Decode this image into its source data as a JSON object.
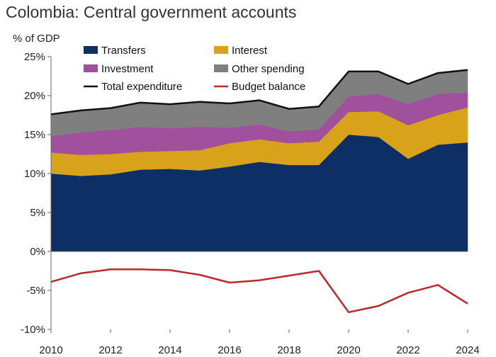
{
  "chart_data": {
    "type": "area",
    "title": "Colombia: Central government accounts",
    "xlabel": "",
    "ylabel": "% of GDP",
    "x": [
      2010,
      2011,
      2012,
      2013,
      2014,
      2015,
      2016,
      2017,
      2018,
      2019,
      2020,
      2021,
      2022,
      2023,
      2024
    ],
    "xticks": [
      "2010",
      "2012",
      "2014",
      "2016",
      "2018",
      "2020",
      "2022",
      "2024"
    ],
    "yticks": [
      "25%",
      "20%",
      "15%",
      "10%",
      "5%",
      "0%",
      "-5%",
      "-10%"
    ],
    "ylim": [
      -10,
      25
    ],
    "stacked_series": [
      {
        "name": "Transfers",
        "color": "#0d2f66",
        "values": [
          10.0,
          9.7,
          9.9,
          10.5,
          10.6,
          10.4,
          10.9,
          11.5,
          11.1,
          11.1,
          15.0,
          14.7,
          11.9,
          13.7,
          14.0
        ]
      },
      {
        "name": "Interest",
        "color": "#d9a21b",
        "values": [
          2.7,
          2.7,
          2.6,
          2.3,
          2.3,
          2.6,
          3.0,
          2.9,
          2.8,
          3.0,
          2.9,
          3.3,
          4.3,
          3.8,
          4.5
        ]
      },
      {
        "name": "Investment",
        "color": "#a0509c",
        "values": [
          2.1,
          2.9,
          3.1,
          3.2,
          2.9,
          3.0,
          2.0,
          1.9,
          1.5,
          1.6,
          2.0,
          2.2,
          2.7,
          2.7,
          1.9
        ]
      },
      {
        "name": "Other spending",
        "color": "#7f7f7f",
        "values": [
          2.8,
          2.8,
          2.8,
          3.1,
          3.1,
          3.2,
          3.1,
          3.1,
          2.9,
          2.9,
          3.2,
          2.9,
          2.6,
          2.7,
          2.9
        ]
      }
    ],
    "line_series": [
      {
        "name": "Total expenditure",
        "color": "#111111",
        "values": [
          17.6,
          18.1,
          18.4,
          19.1,
          18.9,
          19.2,
          19.0,
          19.4,
          18.3,
          18.6,
          23.1,
          23.1,
          21.5,
          22.9,
          23.3
        ]
      },
      {
        "name": "Budget balance",
        "color": "#c0272d",
        "values": [
          -3.9,
          -2.8,
          -2.3,
          -2.3,
          -2.4,
          -3.0,
          -4.0,
          -3.7,
          -3.1,
          -2.5,
          -7.8,
          -7.0,
          -5.3,
          -4.3,
          -6.7
        ]
      }
    ],
    "legend": [
      "Transfers",
      "Interest",
      "Investment",
      "Other spending",
      "Total expenditure",
      "Budget balance"
    ],
    "legend_position": "top",
    "grid": false
  }
}
